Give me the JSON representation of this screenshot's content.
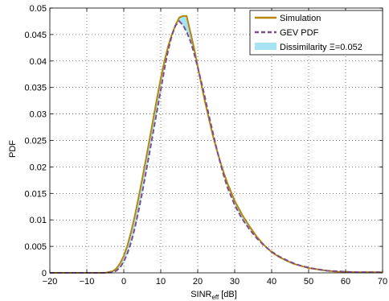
{
  "chart_data": {
    "type": "line",
    "xlabel": {
      "main": "SINR",
      "sub": "eff",
      "unit": "[dB]"
    },
    "ylabel": "PDF",
    "xlim": [
      -20,
      70
    ],
    "ylim": [
      0,
      0.05
    ],
    "grid": true,
    "legend_position": "top-right",
    "xticks": [
      "−20",
      "−10",
      "0",
      "10",
      "20",
      "30",
      "40",
      "50",
      "60",
      "70"
    ],
    "xtick_values": [
      -20,
      -10,
      0,
      10,
      20,
      30,
      40,
      50,
      60,
      70
    ],
    "yticks": [
      "0",
      "0.005",
      "0.01",
      "0.015",
      "0.02",
      "0.025",
      "0.03",
      "0.035",
      "0.04",
      "0.045",
      "0.05"
    ],
    "ytick_values": [
      0,
      0.005,
      0.01,
      0.015,
      0.02,
      0.025,
      0.03,
      0.035,
      0.04,
      0.045,
      0.05
    ],
    "colors": {
      "simulation": "#b8860b",
      "gev": "#7b4f8a",
      "fill": "#a6e3f5"
    },
    "series": [
      {
        "name": "Simulation",
        "x": [
          -20,
          -5,
          -3,
          -2,
          -1,
          0,
          1,
          2,
          3,
          4,
          5,
          6,
          7,
          8,
          9,
          10,
          11,
          12,
          13,
          14,
          15,
          16,
          17,
          18,
          19,
          20,
          21,
          22,
          23,
          24,
          25,
          26,
          27,
          28,
          30,
          32,
          34,
          36,
          38,
          40,
          42,
          44,
          46,
          48,
          50,
          52,
          55,
          58,
          60,
          63,
          66,
          70
        ],
        "y": [
          0,
          0,
          0.0003,
          0.0008,
          0.0018,
          0.0032,
          0.0052,
          0.0078,
          0.0108,
          0.0142,
          0.0178,
          0.0215,
          0.0253,
          0.0292,
          0.033,
          0.0367,
          0.04,
          0.0428,
          0.045,
          0.0468,
          0.0482,
          0.0485,
          0.0485,
          0.0455,
          0.0425,
          0.039,
          0.0355,
          0.0322,
          0.0292,
          0.0262,
          0.0236,
          0.0212,
          0.019,
          0.017,
          0.0136,
          0.011,
          0.0088,
          0.0068,
          0.0052,
          0.0039,
          0.003,
          0.0023,
          0.0017,
          0.0013,
          0.0009,
          0.0007,
          0.0004,
          0.0002,
          0.0002,
          0.0001,
          0.0001,
          0.0001
        ]
      },
      {
        "name": "GEV PDF",
        "x": [
          -20,
          -5,
          -3,
          -2,
          -1,
          0,
          1,
          2,
          3,
          4,
          5,
          6,
          7,
          8,
          9,
          10,
          11,
          12,
          13,
          14,
          15,
          16,
          17,
          18,
          19,
          20,
          21,
          22,
          23,
          24,
          25,
          26,
          27,
          28,
          30,
          32,
          34,
          36,
          38,
          40,
          42,
          44,
          46,
          48,
          50,
          52,
          55,
          58,
          60,
          63,
          66,
          70
        ],
        "y": [
          0,
          0,
          0.0001,
          0.0004,
          0.001,
          0.0021,
          0.0037,
          0.0058,
          0.0085,
          0.0117,
          0.0152,
          0.019,
          0.0228,
          0.0267,
          0.0306,
          0.0345,
          0.0385,
          0.042,
          0.0448,
          0.0467,
          0.0475,
          0.0468,
          0.0455,
          0.0438,
          0.0415,
          0.0388,
          0.036,
          0.033,
          0.0298,
          0.0268,
          0.0238,
          0.021,
          0.0185,
          0.0162,
          0.0128,
          0.0102,
          0.0082,
          0.0065,
          0.0051,
          0.004,
          0.0031,
          0.0024,
          0.0018,
          0.0013,
          0.001,
          0.0007,
          0.0004,
          0.0003,
          0.0002,
          0.0001,
          0.0001,
          0.0001
        ]
      }
    ],
    "legend": [
      {
        "label": "Simulation",
        "style": "solid"
      },
      {
        "label": "GEV PDF",
        "style": "dashed"
      },
      {
        "label": "Dissimilarity Ξ=0.052",
        "style": "fill"
      }
    ]
  }
}
